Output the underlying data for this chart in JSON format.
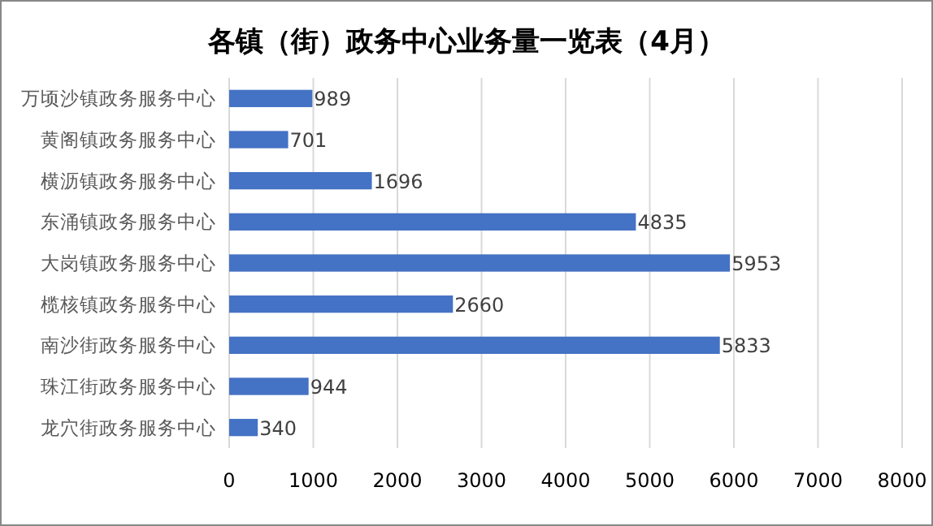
{
  "chart_data": {
    "type": "bar",
    "orientation": "horizontal",
    "title": "各镇（街）政务中心业务量一览表（4月）",
    "categories": [
      "万顷沙镇政务服务中心",
      "黄阁镇政务服务中心",
      "横沥镇政务服务中心",
      "东涌镇政务服务中心",
      "大岗镇政务服务中心",
      "榄核镇政务服务中心",
      "南沙街政务服务中心",
      "珠江街政务服务中心",
      "龙穴街政务服务中心"
    ],
    "values": [
      989,
      701,
      1696,
      4835,
      5953,
      2660,
      5833,
      944,
      340
    ],
    "color": "#4472c4",
    "xlim": [
      0,
      8000
    ],
    "xticks": [
      0,
      1000,
      2000,
      3000,
      4000,
      5000,
      6000,
      7000,
      8000
    ],
    "grid": "x",
    "data_labels": true
  }
}
